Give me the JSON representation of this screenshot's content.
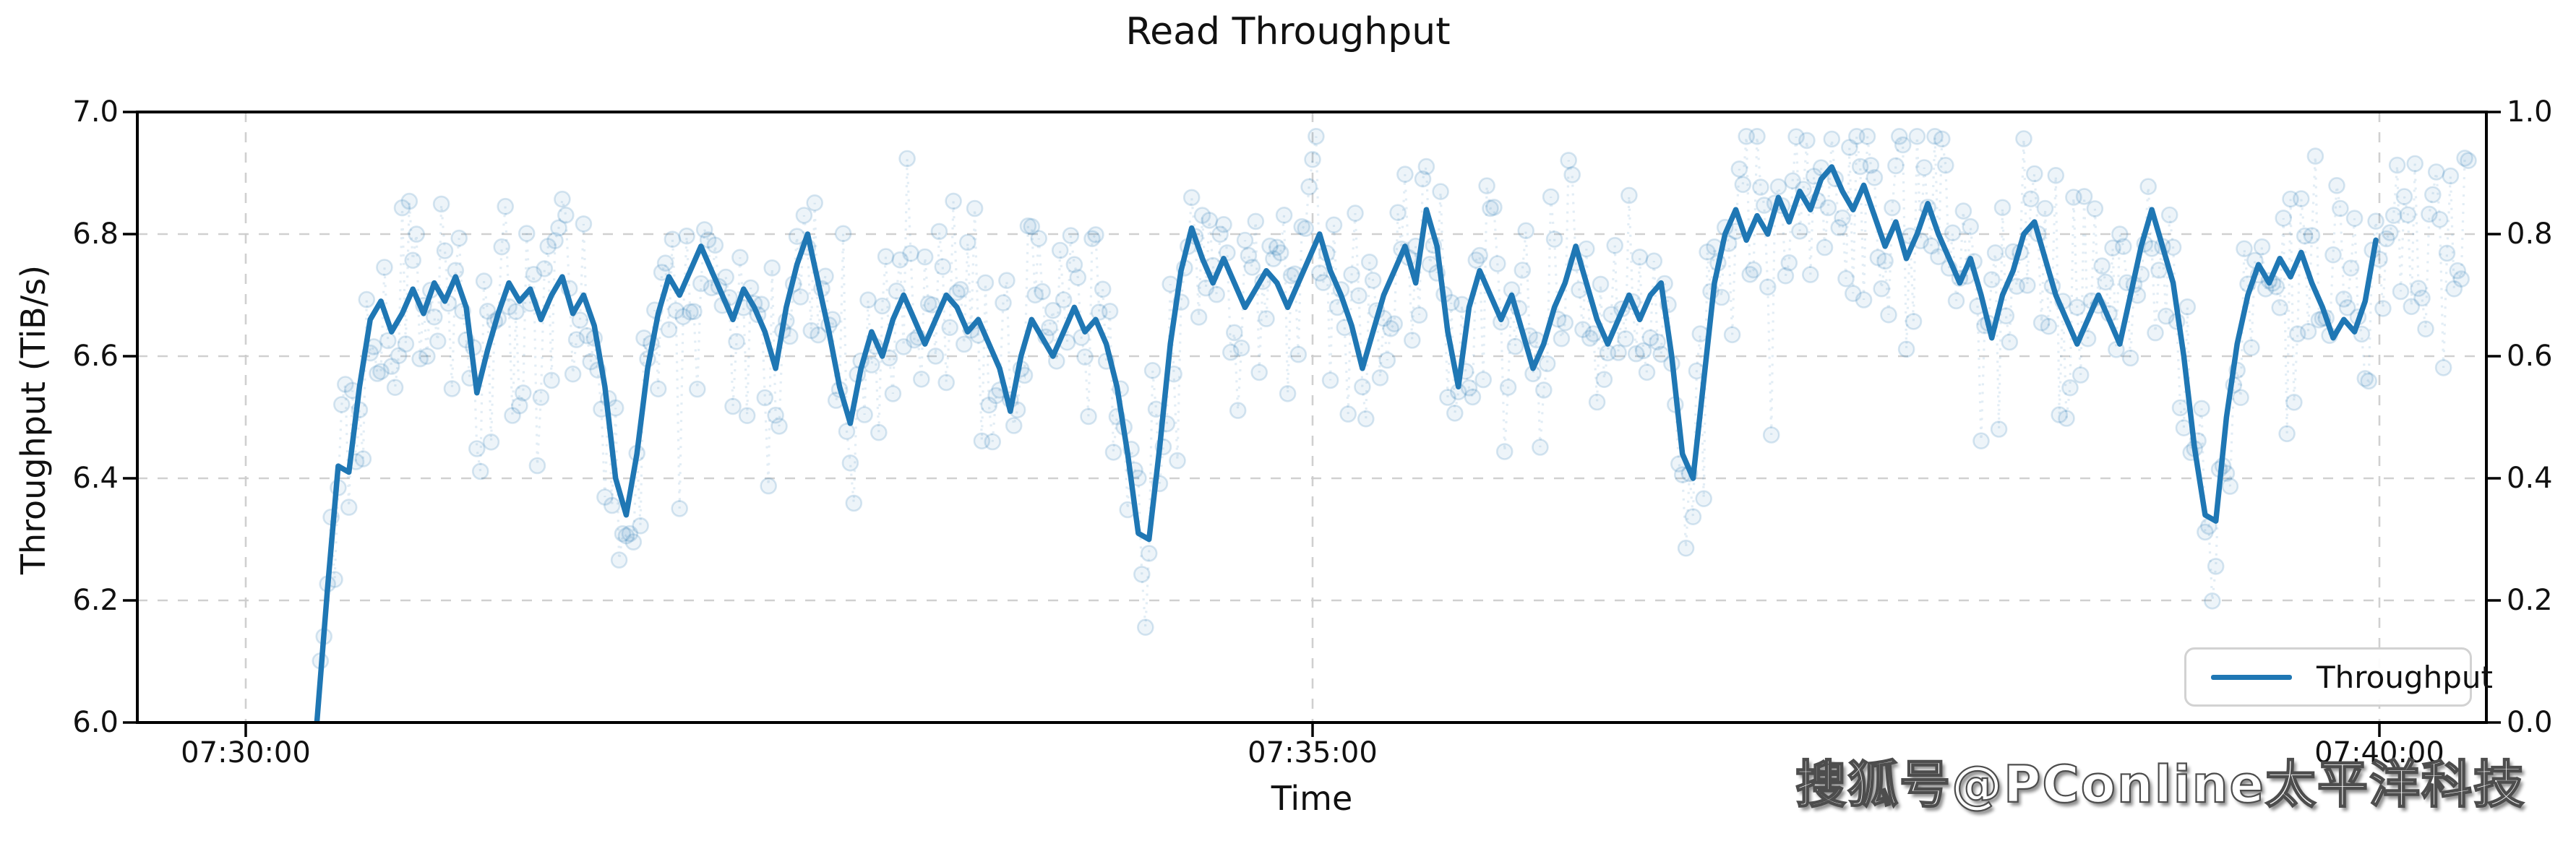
{
  "chart": {
    "title": "Read Throughput",
    "x_axis": {
      "label": "Time",
      "tick_labels": [
        "07:30:00",
        "07:35:00",
        "07:40:00"
      ],
      "tick_seconds": [
        0,
        300,
        600
      ]
    },
    "y_axis_left": {
      "label": "Throughput (TiB/s)",
      "tick_labels": [
        "7.0",
        "6.8",
        "6.6",
        "6.4",
        "6.2",
        "6.0"
      ],
      "tick_values": [
        7.0,
        6.8,
        6.6,
        6.4,
        6.2,
        6.0
      ],
      "range": [
        6.0,
        7.0
      ],
      "gridline_values": [
        6.8,
        6.6,
        6.4,
        6.2
      ]
    },
    "y_axis_right": {
      "tick_labels": [
        "1.0",
        "0.8",
        "0.6",
        "0.4",
        "0.2",
        "0.0"
      ],
      "tick_values": [
        1.0,
        0.8,
        0.6,
        0.4,
        0.2,
        0.0
      ],
      "range": [
        0.0,
        1.0
      ]
    },
    "legend": {
      "position": "lower right",
      "entries": [
        {
          "label": "Throughput",
          "color": "#1f77b4"
        }
      ]
    },
    "colors": {
      "line": "#1f77b4",
      "scatter": "#1f77b4",
      "grid": "#cccccc",
      "spine": "#000000",
      "background": "#ffffff",
      "legend_border": "#d2d2d2"
    }
  },
  "watermark": {
    "text": "搜狐号@PConline太平洋科技"
  },
  "chart_data": {
    "type": "line",
    "title": "Read Throughput",
    "xlabel": "Time",
    "ylabel": "Throughput (TiB/s)",
    "x_unit": "seconds after 07:30:00",
    "x_start": 20,
    "x_step": 3,
    "x_tick_labels": [
      "07:30:00",
      "07:35:00",
      "07:40:00"
    ],
    "x_tick_positions_seconds": [
      0,
      300,
      600
    ],
    "ylim": [
      6.0,
      7.0
    ],
    "ylim_right": [
      0.0,
      1.0
    ],
    "grid": true,
    "legend_position": "lower right",
    "series": [
      {
        "name": "Throughput",
        "color": "#1f77b4",
        "values": [
          6.0,
          6.22,
          6.42,
          6.41,
          6.55,
          6.66,
          6.69,
          6.64,
          6.67,
          6.71,
          6.67,
          6.72,
          6.69,
          6.73,
          6.68,
          6.54,
          6.61,
          6.67,
          6.72,
          6.69,
          6.71,
          6.66,
          6.7,
          6.73,
          6.67,
          6.7,
          6.65,
          6.55,
          6.4,
          6.34,
          6.44,
          6.58,
          6.67,
          6.73,
          6.7,
          6.74,
          6.78,
          6.74,
          6.7,
          6.66,
          6.71,
          6.68,
          6.64,
          6.58,
          6.68,
          6.75,
          6.8,
          6.72,
          6.64,
          6.55,
          6.49,
          6.58,
          6.64,
          6.6,
          6.66,
          6.7,
          6.66,
          6.62,
          6.66,
          6.7,
          6.68,
          6.64,
          6.66,
          6.62,
          6.58,
          6.51,
          6.6,
          6.66,
          6.63,
          6.6,
          6.64,
          6.68,
          6.64,
          6.66,
          6.62,
          6.55,
          6.44,
          6.31,
          6.3,
          6.45,
          6.62,
          6.74,
          6.81,
          6.76,
          6.72,
          6.76,
          6.72,
          6.68,
          6.71,
          6.74,
          6.72,
          6.68,
          6.72,
          6.76,
          6.8,
          6.74,
          6.7,
          6.65,
          6.58,
          6.64,
          6.7,
          6.74,
          6.78,
          6.72,
          6.84,
          6.78,
          6.64,
          6.55,
          6.68,
          6.74,
          6.7,
          6.66,
          6.7,
          6.64,
          6.58,
          6.62,
          6.68,
          6.72,
          6.78,
          6.72,
          6.66,
          6.62,
          6.66,
          6.7,
          6.66,
          6.7,
          6.72,
          6.6,
          6.44,
          6.4,
          6.56,
          6.72,
          6.8,
          6.84,
          6.79,
          6.83,
          6.8,
          6.86,
          6.82,
          6.87,
          6.84,
          6.89,
          6.91,
          6.87,
          6.84,
          6.88,
          6.83,
          6.78,
          6.82,
          6.76,
          6.8,
          6.85,
          6.8,
          6.76,
          6.72,
          6.76,
          6.7,
          6.63,
          6.7,
          6.74,
          6.8,
          6.82,
          6.76,
          6.7,
          6.66,
          6.62,
          6.66,
          6.7,
          6.66,
          6.62,
          6.7,
          6.78,
          6.84,
          6.78,
          6.72,
          6.6,
          6.45,
          6.34,
          6.33,
          6.5,
          6.62,
          6.7,
          6.75,
          6.72,
          6.76,
          6.73,
          6.77,
          6.72,
          6.68,
          6.63,
          6.66,
          6.64,
          6.69,
          6.79
        ]
      }
    ],
    "raw_scatter": {
      "comment": "faint raw 1-second samples drawn as dotted-connected open circles jittered around the smoothed line",
      "seed": 11,
      "t_start": 21,
      "t_end": 625,
      "step_seconds": 1,
      "max_jitter": 0.3,
      "alpha_fill": 0.08,
      "alpha_stroke": 0.18
    }
  }
}
